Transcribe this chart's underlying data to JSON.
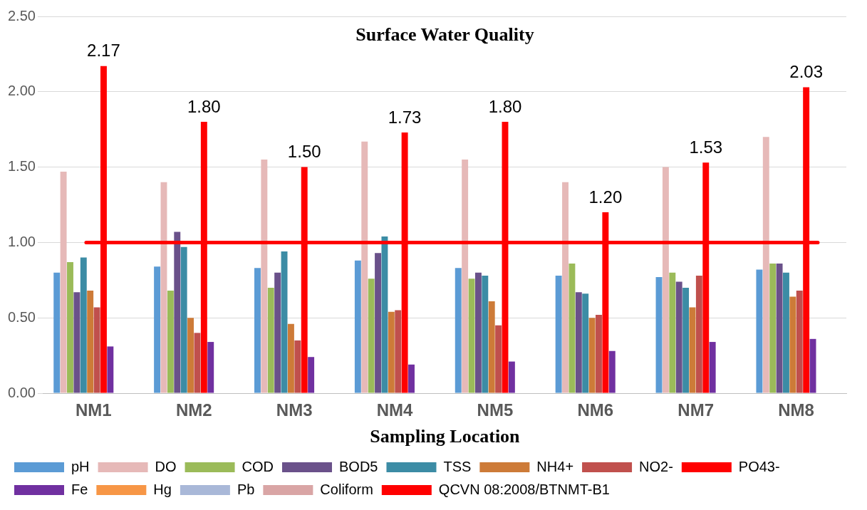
{
  "chart_data": {
    "type": "bar",
    "title": "Surface Water Quality",
    "xlabel": "Sampling Location",
    "categories": [
      "NM1",
      "NM2",
      "NM3",
      "NM4",
      "NM5",
      "NM6",
      "NM7",
      "NM8"
    ],
    "series": [
      {
        "name": "pH",
        "color": "#5b9bd5",
        "values": [
          0.8,
          0.84,
          0.83,
          0.88,
          0.83,
          0.78,
          0.77,
          0.82
        ]
      },
      {
        "name": "DO",
        "color": "#e6b9b8",
        "values": [
          1.47,
          1.4,
          1.55,
          1.67,
          1.55,
          1.4,
          1.5,
          1.7
        ]
      },
      {
        "name": "COD",
        "color": "#9bbb59",
        "values": [
          0.87,
          0.68,
          0.7,
          0.76,
          0.76,
          0.86,
          0.8,
          0.86
        ]
      },
      {
        "name": "BOD5",
        "color": "#6a518a",
        "values": [
          0.67,
          1.07,
          0.8,
          0.93,
          0.8,
          0.67,
          0.74,
          0.86
        ]
      },
      {
        "name": "TSS",
        "color": "#3c8ca5",
        "values": [
          0.9,
          0.97,
          0.94,
          1.04,
          0.78,
          0.66,
          0.7,
          0.8
        ]
      },
      {
        "name": "NH4+",
        "color": "#cd7b38",
        "values": [
          0.68,
          0.5,
          0.46,
          0.54,
          0.61,
          0.5,
          0.57,
          0.64
        ]
      },
      {
        "name": "NO2-",
        "color": "#c0504d",
        "values": [
          0.57,
          0.4,
          0.35,
          0.55,
          0.45,
          0.52,
          0.78,
          0.68
        ]
      },
      {
        "name": "PO43-",
        "color": "#ff0000",
        "values": [
          2.17,
          1.8,
          1.5,
          1.73,
          1.8,
          1.2,
          1.53,
          2.03
        ],
        "value_labels": [
          "2.17",
          "1.80",
          "1.50",
          "1.73",
          "1.80",
          "1.20",
          "1.53",
          "2.03"
        ]
      },
      {
        "name": "Fe",
        "color": "#7030a0",
        "values": [
          0.31,
          0.34,
          0.24,
          0.19,
          0.21,
          0.28,
          0.34,
          0.36
        ]
      },
      {
        "name": "Hg",
        "color": "#f79646",
        "values": [
          null,
          null,
          null,
          null,
          null,
          null,
          null,
          null
        ]
      },
      {
        "name": "Pb",
        "color": "#a9b8d8",
        "values": [
          null,
          null,
          null,
          null,
          null,
          null,
          null,
          null
        ]
      },
      {
        "name": "Coliform",
        "color": "#d9a5a5",
        "values": [
          null,
          null,
          null,
          null,
          null,
          null,
          null,
          null
        ]
      }
    ],
    "ref_lines": [
      {
        "axis": "y",
        "value": 1.0,
        "label": "QCVN 08:2008/BTNMT-B1",
        "color": "#ff0000"
      }
    ],
    "ylim": [
      0,
      2.5
    ],
    "yticks": [
      {
        "value": 0,
        "label": "0.00"
      },
      {
        "value": 0.5,
        "label": "0.50"
      },
      {
        "value": 1,
        "label": "1.00"
      },
      {
        "value": 1.5,
        "label": "1.50"
      },
      {
        "value": 2,
        "label": "2.00"
      },
      {
        "value": 2.5,
        "label": "2.50"
      }
    ],
    "grid": "y",
    "legend": "bottom"
  }
}
